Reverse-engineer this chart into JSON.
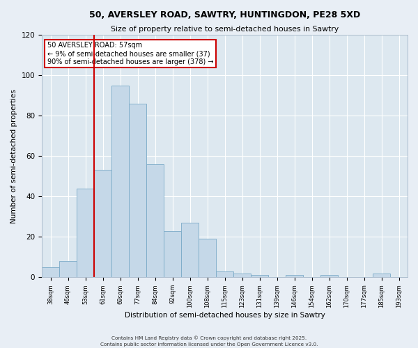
{
  "title_line1": "50, AVERSLEY ROAD, SAWTRY, HUNTINGDON, PE28 5XD",
  "title_line2": "Size of property relative to semi-detached houses in Sawtry",
  "xlabel": "Distribution of semi-detached houses by size in Sawtry",
  "ylabel": "Number of semi-detached properties",
  "bar_labels": [
    "38sqm",
    "46sqm",
    "53sqm",
    "61sqm",
    "69sqm",
    "77sqm",
    "84sqm",
    "92sqm",
    "100sqm",
    "108sqm",
    "115sqm",
    "123sqm",
    "131sqm",
    "139sqm",
    "146sqm",
    "154sqm",
    "162sqm",
    "170sqm",
    "177sqm",
    "185sqm",
    "193sqm"
  ],
  "bar_values": [
    5,
    8,
    44,
    53,
    95,
    86,
    56,
    23,
    27,
    19,
    3,
    2,
    1,
    0,
    1,
    0,
    1,
    0,
    0,
    2,
    0
  ],
  "bar_color": "#c5d8e8",
  "bar_edgecolor": "#7aaac8",
  "bg_color": "#dde8f0",
  "grid_color": "#ffffff",
  "property_line_x": 2.5,
  "property_label": "50 AVERSLEY ROAD: 57sqm",
  "annotation_smaller": "← 9% of semi-detached houses are smaller (37)",
  "annotation_larger": "90% of semi-detached houses are larger (378) →",
  "vline_color": "#cc0000",
  "annotation_box_edgecolor": "#cc0000",
  "ylim": [
    0,
    120
  ],
  "yticks": [
    0,
    20,
    40,
    60,
    80,
    100,
    120
  ],
  "footer1": "Contains HM Land Registry data © Crown copyright and database right 2025.",
  "footer2": "Contains public sector information licensed under the Open Government Licence v3.0.",
  "fig_bg": "#e8eef5"
}
